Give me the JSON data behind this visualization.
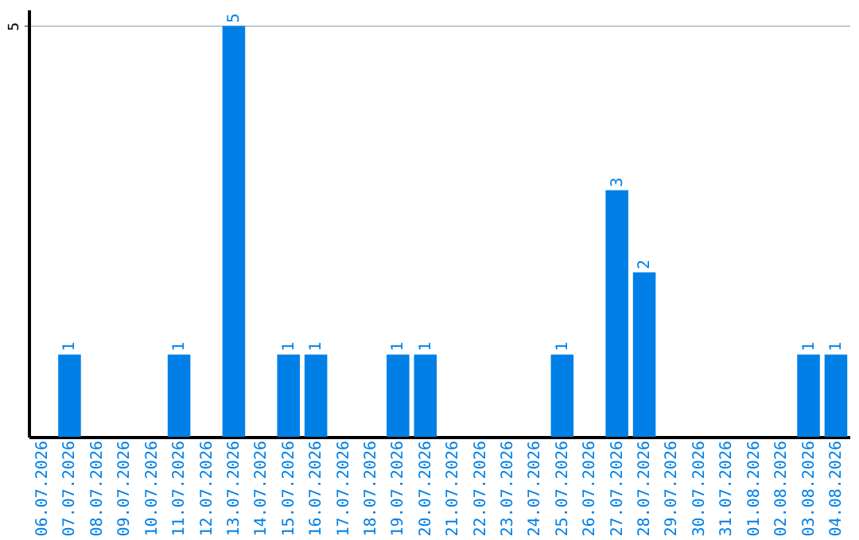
{
  "chart_data": {
    "type": "bar",
    "categories": [
      "06.07.2026",
      "07.07.2026",
      "08.07.2026",
      "09.07.2026",
      "10.07.2026",
      "11.07.2026",
      "12.07.2026",
      "13.07.2026",
      "14.07.2026",
      "15.07.2026",
      "16.07.2026",
      "17.07.2026",
      "18.07.2026",
      "19.07.2026",
      "20.07.2026",
      "21.07.2026",
      "22.07.2026",
      "23.07.2026",
      "24.07.2026",
      "25.07.2026",
      "26.07.2026",
      "27.07.2026",
      "28.07.2026",
      "29.07.2026",
      "30.07.2026",
      "31.07.2026",
      "01.08.2026",
      "02.08.2026",
      "03.08.2026",
      "04.08.2026"
    ],
    "values": [
      0,
      1,
      0,
      0,
      0,
      1,
      0,
      5,
      0,
      1,
      1,
      0,
      0,
      1,
      1,
      0,
      0,
      0,
      0,
      1,
      0,
      3,
      2,
      0,
      0,
      0,
      0,
      0,
      1,
      1
    ],
    "value_labels": [
      null,
      "1",
      null,
      null,
      null,
      "1",
      null,
      "5",
      null,
      "1",
      "1",
      null,
      null,
      "1",
      "1",
      null,
      null,
      null,
      null,
      "1",
      null,
      "3",
      "2",
      null,
      null,
      null,
      null,
      null,
      "1",
      "1"
    ],
    "color": "#0080e6",
    "ylim": [
      0,
      5.2
    ],
    "yticks": [
      5
    ],
    "grid": "y"
  }
}
